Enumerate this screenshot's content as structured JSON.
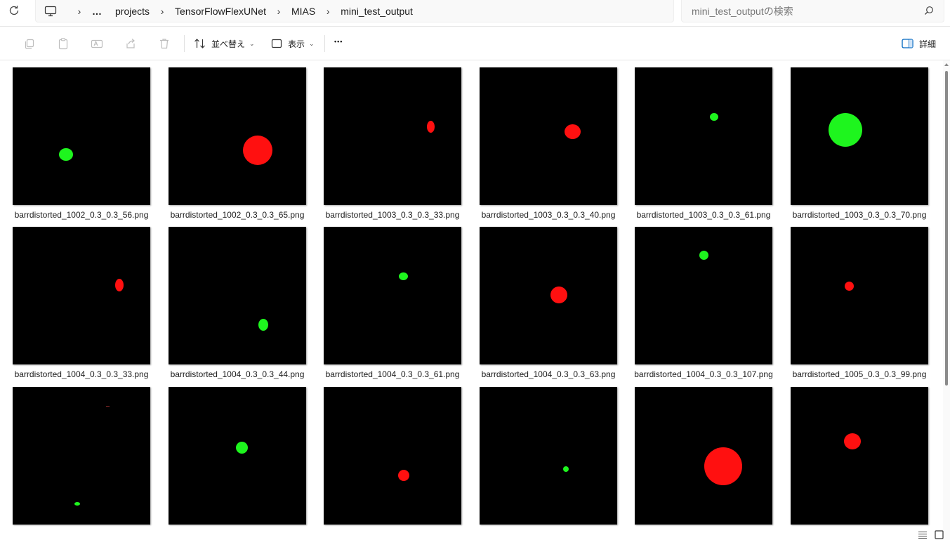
{
  "address_bar": {
    "overflow": "…",
    "crumbs": [
      "projects",
      "TensorFlowFlexUNet",
      "MIAS",
      "mini_test_output"
    ]
  },
  "search": {
    "placeholder": "mini_test_outputの検索"
  },
  "toolbar": {
    "sort_label": "並べ替え",
    "view_label": "表示",
    "more_label": "•••",
    "details_label": "詳細"
  },
  "colors": {
    "green": "#1ef51e",
    "red": "#ff1010",
    "accent": "#0067c0"
  },
  "files": [
    {
      "name": "barrdistorted_1002_0.3_0.3_56.png",
      "blob": {
        "color": "green"
      }
    },
    {
      "name": "barrdistorted_1002_0.3_0.3_65.png",
      "blob": {
        "color": "red"
      }
    },
    {
      "name": "barrdistorted_1003_0.3_0.3_33.png",
      "blob": {
        "color": "red"
      }
    },
    {
      "name": "barrdistorted_1003_0.3_0.3_40.png",
      "blob": {
        "color": "red"
      }
    },
    {
      "name": "barrdistorted_1003_0.3_0.3_61.png",
      "blob": {
        "color": "green"
      }
    },
    {
      "name": "barrdistorted_1003_0.3_0.3_70.png",
      "blob": {
        "color": "green"
      }
    },
    {
      "name": "barrdistorted_1004_0.3_0.3_33.png",
      "blob": {
        "color": "red"
      }
    },
    {
      "name": "barrdistorted_1004_0.3_0.3_44.png",
      "blob": {
        "color": "green"
      }
    },
    {
      "name": "barrdistorted_1004_0.3_0.3_61.png",
      "blob": {
        "color": "green"
      }
    },
    {
      "name": "barrdistorted_1004_0.3_0.3_63.png",
      "blob": {
        "color": "red"
      }
    },
    {
      "name": "barrdistorted_1004_0.3_0.3_107.png",
      "blob": {
        "color": "green"
      }
    },
    {
      "name": "barrdistorted_1005_0.3_0.3_99.png",
      "blob": {
        "color": "red"
      }
    },
    {
      "name": "",
      "blob": {
        "color": "green"
      }
    },
    {
      "name": "",
      "blob": {
        "color": "green"
      }
    },
    {
      "name": "",
      "blob": {
        "color": "red"
      }
    },
    {
      "name": "",
      "blob": {
        "color": "green"
      }
    },
    {
      "name": "",
      "blob": {
        "color": "red"
      }
    },
    {
      "name": "",
      "blob": {
        "color": "red"
      }
    }
  ]
}
